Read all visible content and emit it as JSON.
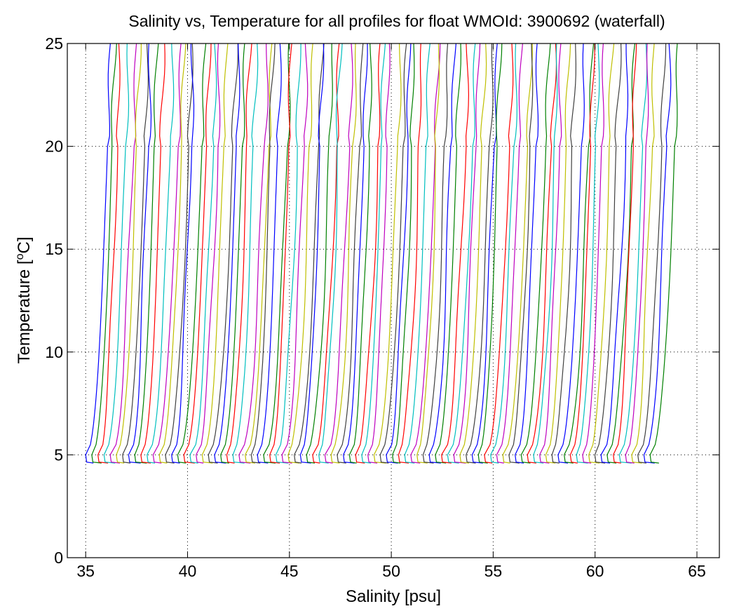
{
  "chart_data": {
    "type": "line",
    "title": "Salinity vs, Temperature for all profiles for float WMOId: 3900692 (waterfall)",
    "xlabel": "Salinity [psu]",
    "ylabel_main": "Temperature [",
    "ylabel_sup": "o",
    "ylabel_end": "C]",
    "xlim": [
      34.1,
      66.1
    ],
    "ylim": [
      0,
      25
    ],
    "xticks": [
      35,
      40,
      45,
      50,
      55,
      60,
      65
    ],
    "yticks": [
      0,
      5,
      10,
      15,
      20,
      25
    ],
    "grid": true,
    "waterfall": {
      "profile_count": 93,
      "first_offset_psu": 35.0,
      "last_offset_psu": 62.7,
      "surface_temperature": 25,
      "deep_temperature": 4.6
    },
    "series_colors": [
      "#0000ff",
      "#008000",
      "#ff0000",
      "#00bfbf",
      "#bf00bf",
      "#bfbf00",
      "#404040"
    ]
  }
}
